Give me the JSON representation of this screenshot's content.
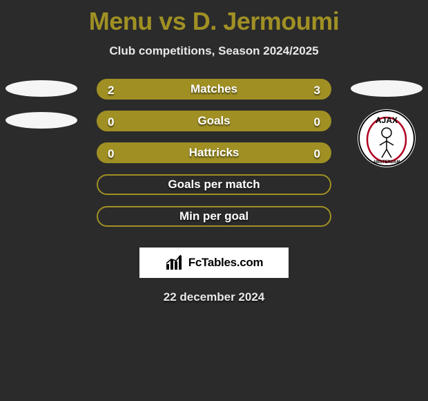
{
  "title": "Menu vs D. Jermoumi",
  "subtitle": "Club competitions, Season 2024/2025",
  "colors": {
    "title_color": "#a09024",
    "background": "#2b2b2b",
    "pill_fill": "#a09024",
    "pill_empty_fill": "#2b2b2b",
    "pill_border": "#a09024",
    "text_white": "#ffffff"
  },
  "stat_rows": [
    {
      "label": "Matches",
      "left": "2",
      "right": "3",
      "filled": true
    },
    {
      "label": "Goals",
      "left": "0",
      "right": "0",
      "filled": true
    },
    {
      "label": "Hattricks",
      "left": "0",
      "right": "0",
      "filled": true
    },
    {
      "label": "Goals per match",
      "left": "",
      "right": "",
      "filled": false
    },
    {
      "label": "Min per goal",
      "left": "",
      "right": "",
      "filled": false
    }
  ],
  "left_badges": [
    {
      "type": "ellipse",
      "row": 0
    },
    {
      "type": "ellipse",
      "row": 1
    }
  ],
  "right_badges": [
    {
      "type": "ellipse",
      "row": 0
    },
    {
      "type": "ajax",
      "row": 1
    }
  ],
  "branding": {
    "label": "FcTables.com"
  },
  "date": "22 december 2024"
}
